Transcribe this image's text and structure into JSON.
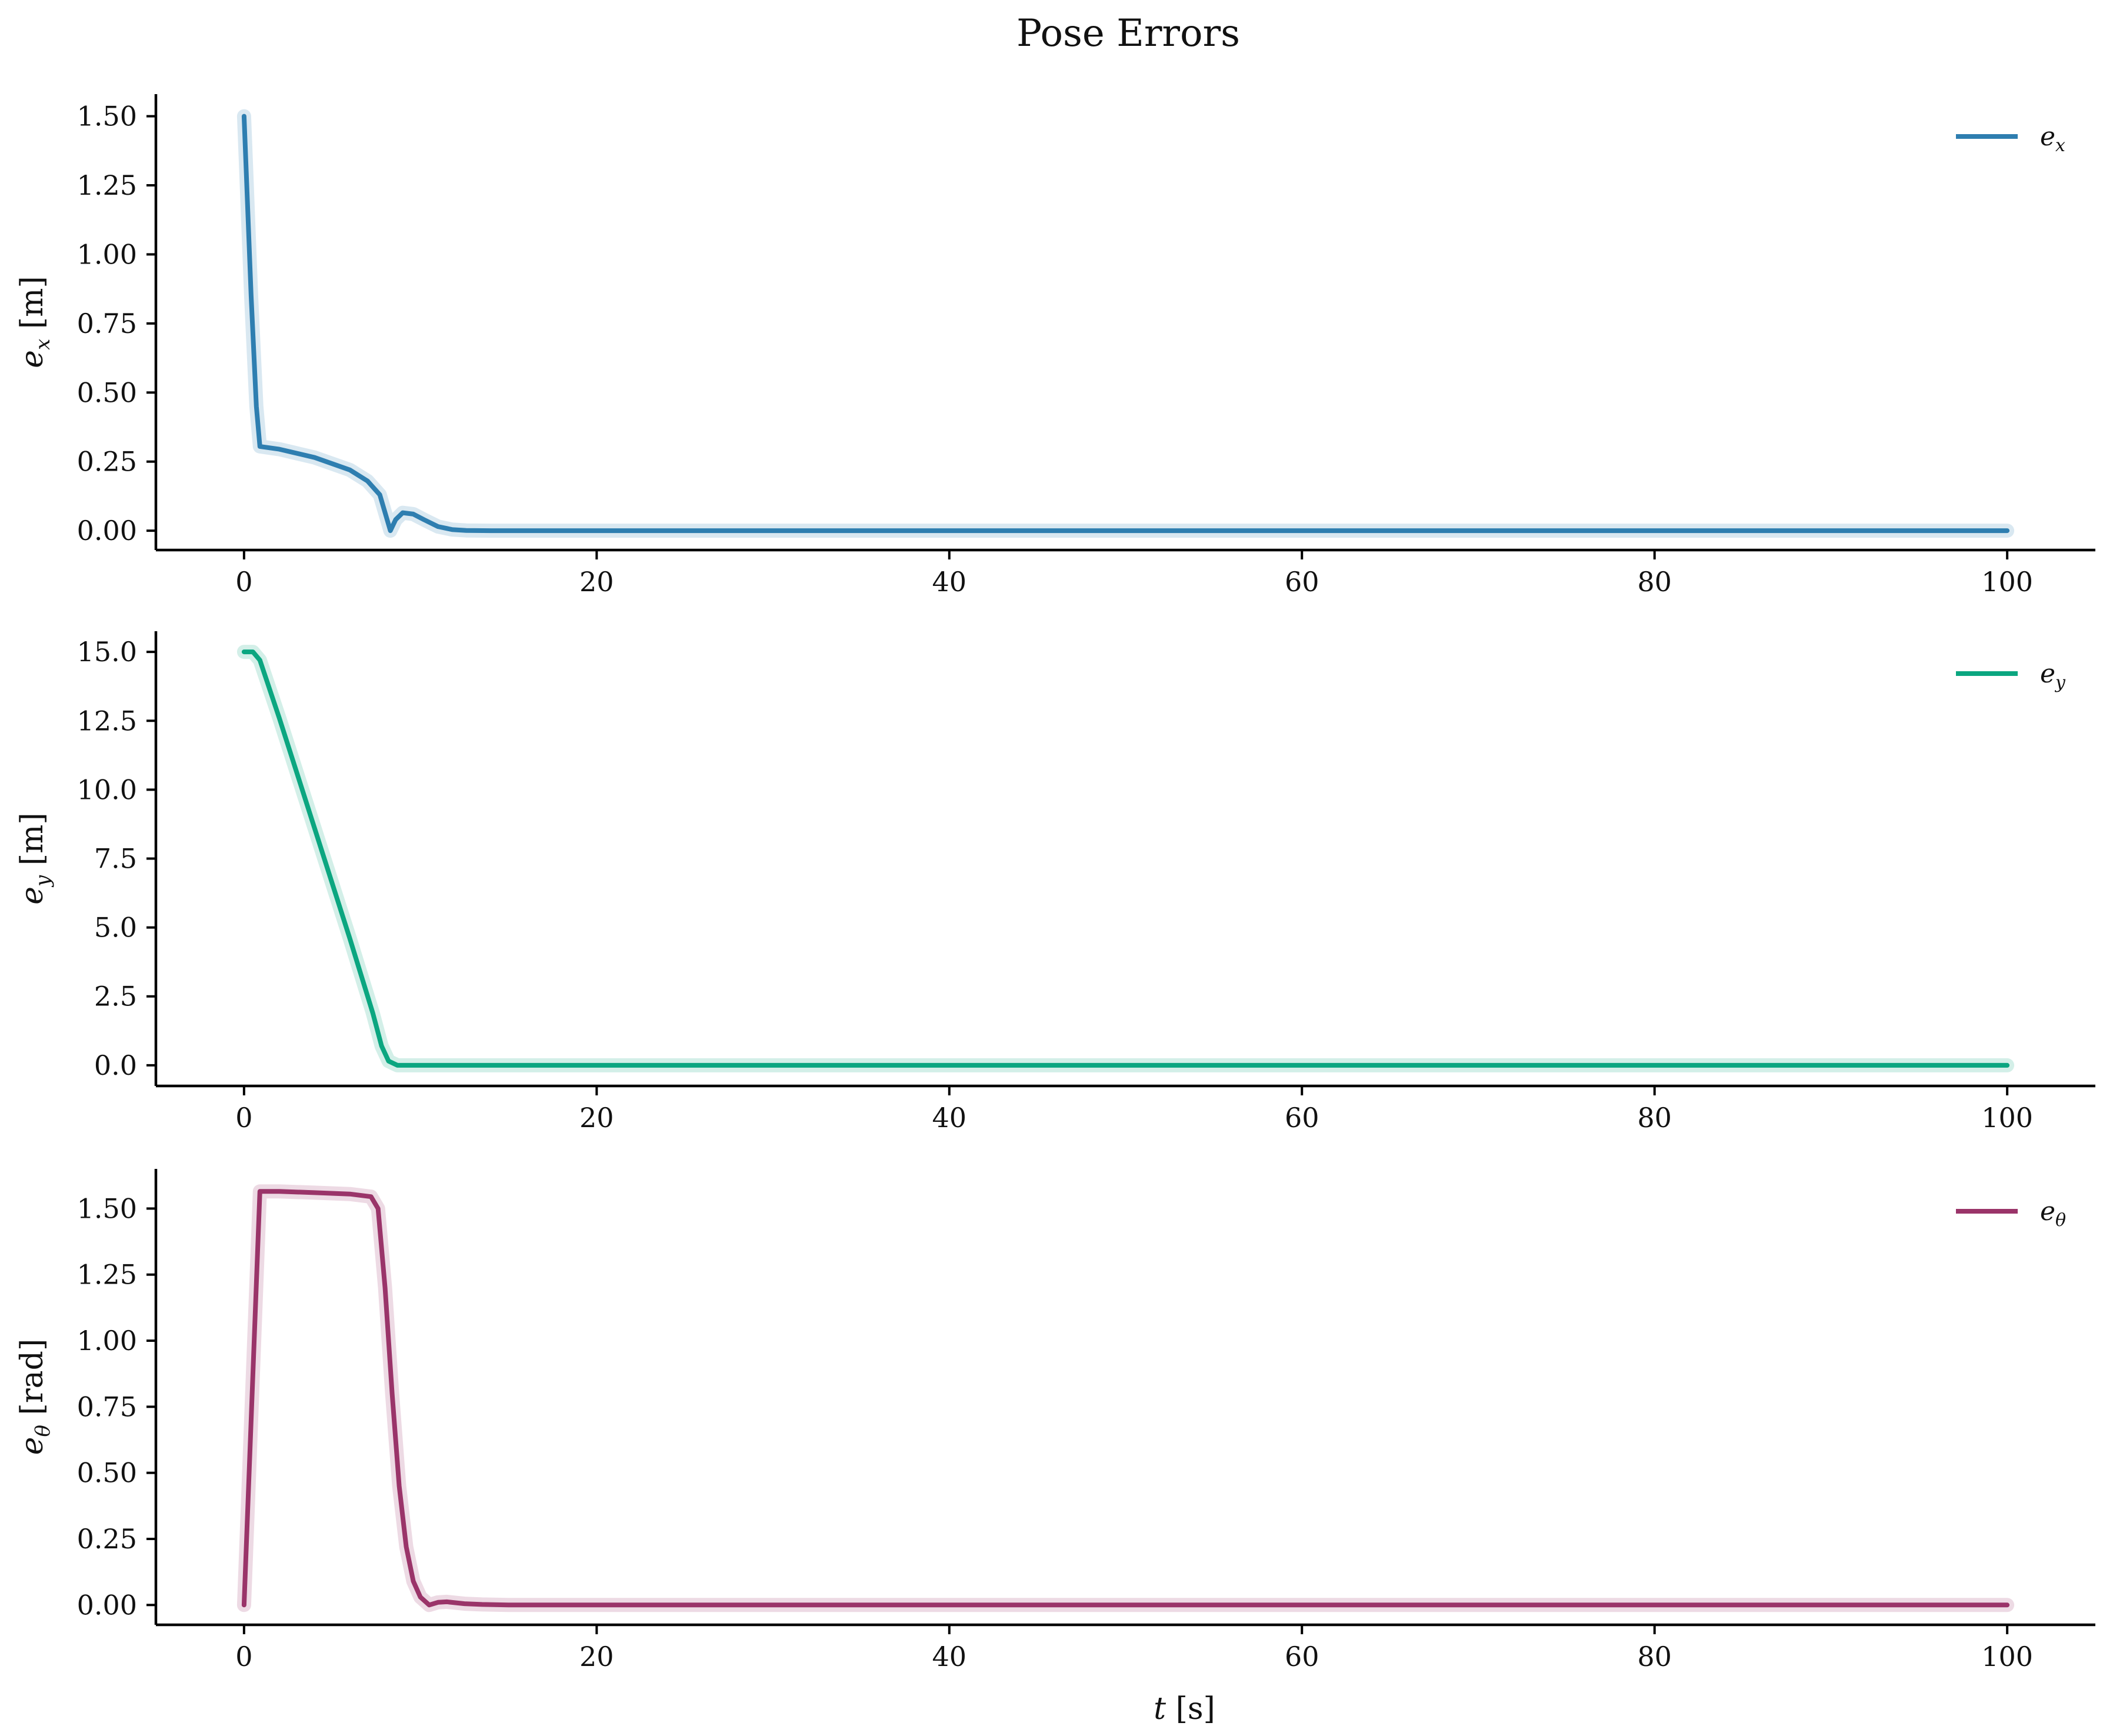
{
  "figure": {
    "title": "Pose Errors"
  },
  "chart_data": [
    {
      "type": "line",
      "title": "",
      "xlabel": "",
      "ylabel": {
        "symbol": "e",
        "sub": "x",
        "unit": "[m]"
      },
      "xlim": [
        -5,
        105
      ],
      "ylim": [
        -0.07,
        1.58
      ],
      "xticks": [
        0,
        20,
        40,
        60,
        80,
        100
      ],
      "xtick_labels": [
        "0",
        "20",
        "40",
        "60",
        "80",
        "100"
      ],
      "yticks": [
        0,
        0.25,
        0.5,
        0.75,
        1.0,
        1.25,
        1.5
      ],
      "ytick_labels": [
        "0.00",
        "0.25",
        "0.50",
        "0.75",
        "1.00",
        "1.25",
        "1.50"
      ],
      "grid": false,
      "legend_position": "top-right",
      "series": [
        {
          "name": {
            "symbol": "e",
            "sub": "x"
          },
          "color": "#2e7eb0",
          "x": [
            0,
            0.4,
            0.7,
            0.9,
            2,
            4,
            6,
            7,
            7.7,
            8.3,
            8.6,
            9,
            9.6,
            10.2,
            11,
            11.8,
            12.6,
            14,
            20,
            40,
            60,
            80,
            100
          ],
          "y": [
            1.5,
            0.85,
            0.45,
            0.305,
            0.295,
            0.265,
            0.22,
            0.18,
            0.13,
            0.0,
            0.04,
            0.065,
            0.06,
            0.04,
            0.015,
            0.004,
            0.001,
            0.0,
            0.0,
            0.0,
            0.0,
            0.0,
            0.0
          ]
        }
      ]
    },
    {
      "type": "line",
      "title": "",
      "xlabel": "",
      "ylabel": {
        "symbol": "e",
        "sub": "y",
        "unit": "[m]"
      },
      "xlim": [
        -5,
        105
      ],
      "ylim": [
        -0.75,
        15.75
      ],
      "xticks": [
        0,
        20,
        40,
        60,
        80,
        100
      ],
      "xtick_labels": [
        "0",
        "20",
        "40",
        "60",
        "80",
        "100"
      ],
      "yticks": [
        0,
        2.5,
        5,
        7.5,
        10,
        12.5,
        15
      ],
      "ytick_labels": [
        "0.0",
        "2.5",
        "5.0",
        "7.5",
        "10.0",
        "12.5",
        "15.0"
      ],
      "grid": false,
      "legend_position": "top-right",
      "series": [
        {
          "name": {
            "symbol": "e",
            "sub": "y"
          },
          "color": "#0ba680",
          "x": [
            0,
            0.5,
            0.9,
            2,
            4,
            6,
            7.3,
            7.8,
            8.2,
            8.7,
            9.5,
            20,
            40,
            60,
            80,
            100
          ],
          "y": [
            15.0,
            15.0,
            14.7,
            12.6,
            8.6,
            4.6,
            1.9,
            0.7,
            0.15,
            0.0,
            0.0,
            0.0,
            0.0,
            0.0,
            0.0,
            0.0
          ]
        }
      ]
    },
    {
      "type": "line",
      "title": "",
      "xlabel": "t [s]",
      "ylabel": {
        "symbol": "e",
        "sub": "θ",
        "unit": "[rad]"
      },
      "xlim": [
        -5,
        105
      ],
      "ylim": [
        -0.075,
        1.65
      ],
      "xticks": [
        0,
        20,
        40,
        60,
        80,
        100
      ],
      "xtick_labels": [
        "0",
        "20",
        "40",
        "60",
        "80",
        "100"
      ],
      "yticks": [
        0,
        0.25,
        0.5,
        0.75,
        1.0,
        1.25,
        1.5
      ],
      "ytick_labels": [
        "0.00",
        "0.25",
        "0.50",
        "0.75",
        "1.00",
        "1.25",
        "1.50"
      ],
      "grid": false,
      "legend_position": "top-right",
      "series": [
        {
          "name": {
            "symbol": "e",
            "sub": "θ"
          },
          "color": "#9a3469",
          "x": [
            0,
            0.9,
            2,
            4,
            6,
            7.2,
            7.6,
            8.0,
            8.4,
            8.8,
            9.2,
            9.6,
            10.0,
            10.5,
            11.0,
            11.5,
            12.5,
            13.5,
            15,
            20,
            40,
            60,
            80,
            100
          ],
          "y": [
            0.0,
            1.565,
            1.565,
            1.56,
            1.555,
            1.545,
            1.5,
            1.2,
            0.8,
            0.45,
            0.22,
            0.09,
            0.03,
            0.0,
            0.01,
            0.012,
            0.005,
            0.002,
            0.0,
            0.0,
            0.0,
            0.0,
            0.0,
            0.0
          ]
        }
      ]
    }
  ]
}
